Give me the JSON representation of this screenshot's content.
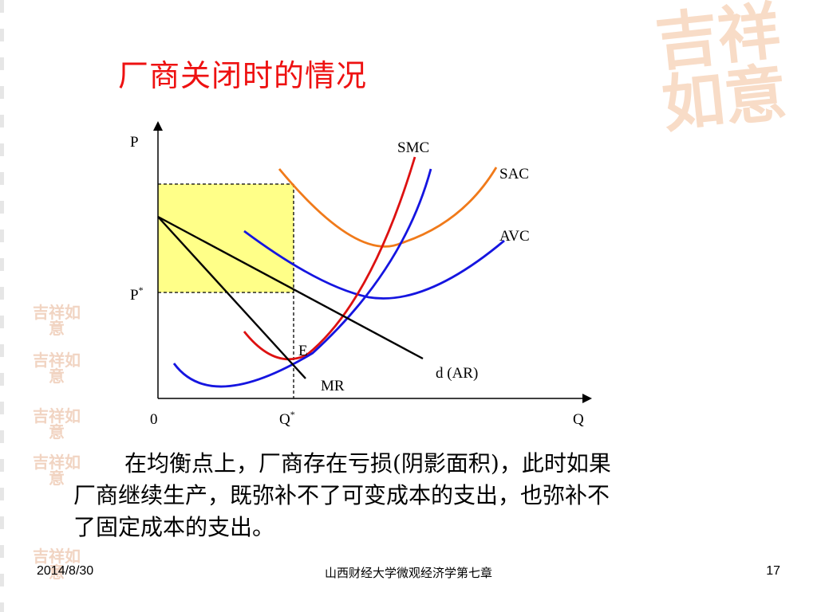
{
  "slide": {
    "title": "厂商关闭时的情况",
    "decoration_text": "吉祥如意",
    "body_lines": [
      "在均衡点上，厂商存在亏损(阴影面积)，此时如果",
      "厂商继续生产，既弥补不了可变成本的支出，也弥补不",
      "了固定成本的支出。"
    ],
    "footer": {
      "date": "2014/8/30",
      "center": "山西财经大学微观经济学第七章",
      "page": "17"
    }
  },
  "diagram": {
    "axis_labels": {
      "y": "P",
      "x": "Q",
      "origin": "0"
    },
    "price_label": {
      "base": "P",
      "sup": "*"
    },
    "quantity_label": {
      "base": "Q",
      "sup": "*"
    },
    "curve_labels": {
      "smc": "SMC",
      "sac": "SAC",
      "avc": "AVC",
      "demand": "d (AR)",
      "mr": "MR",
      "equilibrium": "E"
    },
    "colors": {
      "title": "#ee1111",
      "smc": "#dd1111",
      "sac": "#f07a1a",
      "avc": "#1515e0",
      "demand": "#000000",
      "mr": "#000000",
      "loss_area": "#ffff88"
    }
  }
}
